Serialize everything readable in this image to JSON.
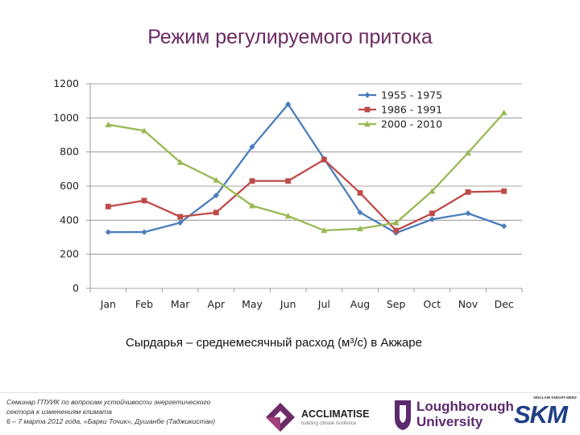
{
  "page_title": "Режим регулируемого притока",
  "chart_data": {
    "type": "line",
    "title": "",
    "xlabel": "Сырдарья – среднемесячный расход (м³/с) в Акжаре",
    "ylabel": "",
    "categories": [
      "Jan",
      "Feb",
      "Mar",
      "Apr",
      "May",
      "Jun",
      "Jul",
      "Aug",
      "Sep",
      "Oct",
      "Nov",
      "Dec"
    ],
    "ylim": [
      0,
      1200
    ],
    "yticks": [
      0,
      200,
      400,
      600,
      800,
      1000,
      1200
    ],
    "ytick_labels": [
      "0",
      "200",
      "400",
      "600",
      "800",
      "1000",
      "1200"
    ],
    "grid": true,
    "legend_position": "top-right",
    "series": [
      {
        "name": "1955 - 1975",
        "color": "#4a7ebb",
        "marker": "diamond",
        "values": [
          330,
          330,
          385,
          545,
          830,
          1080,
          760,
          445,
          325,
          405,
          440,
          365
        ]
      },
      {
        "name": "1986 - 1991",
        "color": "#be4b48",
        "marker": "square",
        "values": [
          480,
          515,
          420,
          445,
          630,
          630,
          755,
          560,
          340,
          440,
          565,
          570
        ]
      },
      {
        "name": "2000 - 2010",
        "color": "#98b954",
        "marker": "triangle",
        "values": [
          960,
          925,
          740,
          635,
          485,
          425,
          340,
          350,
          385,
          570,
          795,
          1030
        ]
      }
    ]
  },
  "footer": {
    "seminar_line1": "Семинар ГПУИК по вопросам устойчивости энергетического",
    "seminar_line2": "сектора к изменениям климата",
    "seminar_line3": "6 – 7 марта 2012 года, «Барки Точик», Душанбе (Таджикистан)",
    "logo_acclimatise": "ACCLIMATISE",
    "logo_acclimatise_tag": "building climate resilience",
    "logo_lboro_1": "Loughborough",
    "logo_lboro_2": "University",
    "logo_skm_tag": "SINCLAIR KNIGHT MERZ",
    "logo_skm": "SKM"
  }
}
